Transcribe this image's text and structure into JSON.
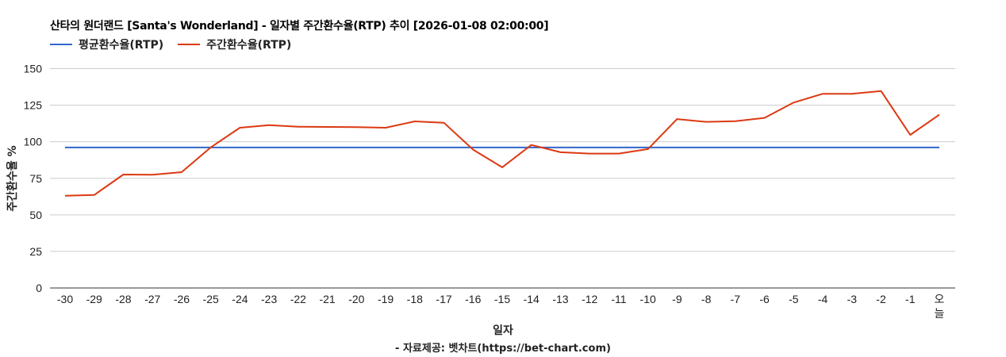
{
  "chart_data": {
    "type": "line",
    "title": "산타의 원더랜드 [Santa's Wonderland] - 일자별 주간환수율(RTP) 추이 [2026-01-08 02:00:00]",
    "xlabel": "일자",
    "ylabel": "주간환수율 %",
    "ylim": [
      0,
      150
    ],
    "yticks": [
      0,
      25,
      50,
      75,
      100,
      125,
      150
    ],
    "grid": true,
    "legend_position": "top",
    "categories": [
      "-30",
      "-29",
      "-28",
      "-27",
      "-26",
      "-25",
      "-24",
      "-23",
      "-22",
      "-21",
      "-20",
      "-19",
      "-18",
      "-17",
      "-16",
      "-15",
      "-14",
      "-13",
      "-12",
      "-11",
      "-10",
      "-9",
      "-8",
      "-7",
      "-6",
      "-5",
      "-4",
      "-3",
      "-2",
      "-1",
      "오늘"
    ],
    "series": [
      {
        "name": "평균환수율(RTP)",
        "color": "#3366cc",
        "values": [
          96.1,
          96.1,
          96.1,
          96.1,
          96.1,
          96.1,
          96.1,
          96.1,
          96.1,
          96.1,
          96.1,
          96.1,
          96.1,
          96.1,
          96.1,
          96.1,
          96.1,
          96.1,
          96.1,
          96.1,
          96.1,
          96.1,
          96.1,
          96.1,
          96.1,
          96.1,
          96.1,
          96.1,
          96.1,
          96.1,
          96.1
        ]
      },
      {
        "name": "주간환수율(RTP)",
        "color": "#dc3912",
        "values": [
          63.1,
          63.6,
          77.6,
          77.4,
          79.2,
          96.2,
          109.6,
          111.4,
          110.3,
          110.1,
          110.0,
          109.6,
          113.9,
          113.0,
          94.6,
          82.5,
          97.8,
          92.8,
          91.9,
          91.9,
          95.0,
          115.5,
          113.6,
          114.1,
          116.3,
          126.8,
          132.8,
          132.8,
          134.7,
          104.7,
          118.5
        ]
      }
    ],
    "source": "- 자료제공: 벳차트(https://bet-chart.com)"
  },
  "header": {
    "title": "산타의 원더랜드 [Santa's Wonderland] - 일자별 주간환수율(RTP) 추이 [2026-01-08 02:00:00]"
  },
  "legend": [
    {
      "label": "평균환수율(RTP)",
      "color": "#3366cc"
    },
    {
      "label": "주간환수율(RTP)",
      "color": "#dc3912"
    }
  ],
  "axes": {
    "x_title": "일자",
    "y_title": "주간환수율 %"
  },
  "footer": {
    "source": "- 자료제공: 벳차트(https://bet-chart.com)"
  }
}
